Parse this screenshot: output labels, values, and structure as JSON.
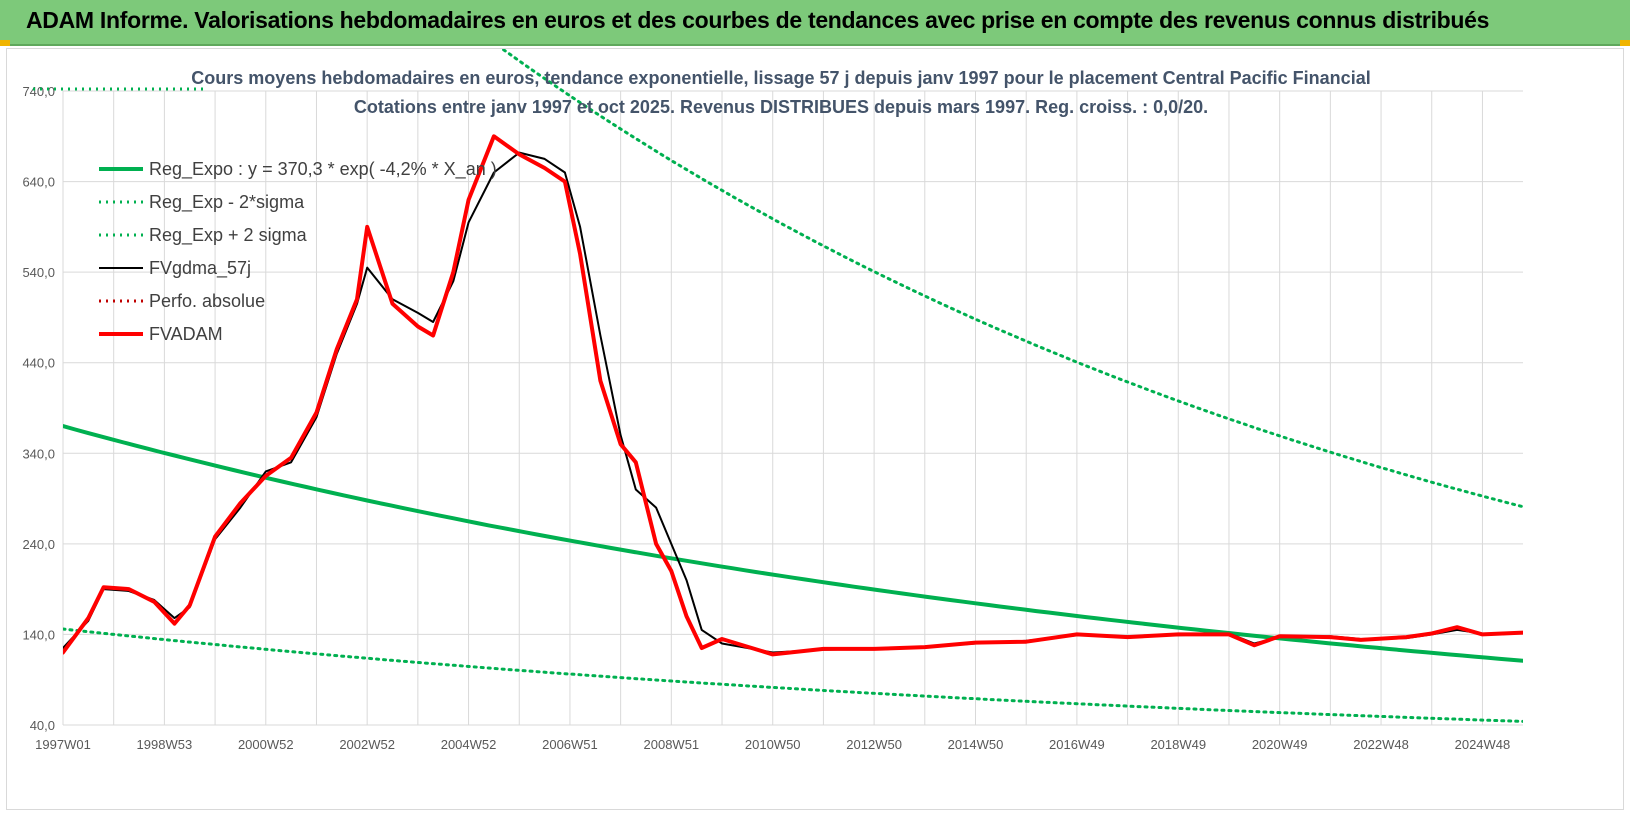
{
  "banner": {
    "title": "ADAM Informe. Valorisations hebdomadaires en euros et des courbes de tendances avec prise en compte des revenus connus distribués"
  },
  "colors": {
    "banner_bg": "#7dc97a",
    "trend": "#00b050",
    "fv57": "#000000",
    "fvadam": "#ff0000",
    "perfo": "#c00000",
    "grid": "#d9d9d9",
    "title_text": "#44546a"
  },
  "chart_data": {
    "type": "line",
    "title_line1": "Cours moyens hebdomadaires en euros, tendance exponentielle, lissage 57 j depuis janv 1997 pour le placement Central Pacific Financial",
    "title_line2": "Cotations entre janv 1997 et oct 2025. Revenus DISTRIBUES depuis mars 1997. Reg. croiss. : 0,0/20.",
    "x_range": [
      1997.0,
      2025.8
    ],
    "ylim": [
      40,
      740
    ],
    "y_ticks": [
      {
        "value": 40,
        "label": "40,0"
      },
      {
        "value": 140,
        "label": "140,0"
      },
      {
        "value": 240,
        "label": "240,0"
      },
      {
        "value": 340,
        "label": "340,0"
      },
      {
        "value": 440,
        "label": "440,0"
      },
      {
        "value": 540,
        "label": "540,0"
      },
      {
        "value": 640,
        "label": "640,0"
      },
      {
        "value": 740,
        "label": "740,0"
      }
    ],
    "x_ticks": [
      {
        "x": 1997.0,
        "label": "1997W01"
      },
      {
        "x": 1999.0,
        "label": "1998W53"
      },
      {
        "x": 2001.0,
        "label": "2000W52"
      },
      {
        "x": 2003.0,
        "label": "2002W52"
      },
      {
        "x": 2005.0,
        "label": "2004W52"
      },
      {
        "x": 2007.0,
        "label": "2006W51"
      },
      {
        "x": 2009.0,
        "label": "2008W51"
      },
      {
        "x": 2011.0,
        "label": "2010W50"
      },
      {
        "x": 2013.0,
        "label": "2012W50"
      },
      {
        "x": 2015.0,
        "label": "2014W50"
      },
      {
        "x": 2017.0,
        "label": "2016W49"
      },
      {
        "x": 2019.0,
        "label": "2018W49"
      },
      {
        "x": 2021.0,
        "label": "2020W49"
      },
      {
        "x": 2023.0,
        "label": "2022W48"
      },
      {
        "x": 2025.0,
        "label": "2024W48"
      }
    ],
    "grid": true,
    "legend_position": "top-left",
    "series": [
      {
        "name": "Reg_Expo : y = 370,3 * exp( -4,2% * X_an )",
        "style": "solid-thick",
        "color": "#00b050",
        "x": [
          1997.0,
          2025.8
        ],
        "y": [
          370,
          111
        ]
      },
      {
        "name": "Reg_Exp - 2*sigma",
        "style": "dotted",
        "color": "#00b050",
        "x": [
          1997.0,
          2025.8
        ],
        "y": [
          146,
          44
        ]
      },
      {
        "name": "Reg_Exp + 2 sigma",
        "style": "dotted",
        "color": "#00b050",
        "x": [
          1997.0,
          2025.8
        ],
        "y": [
          1225,
          281
        ]
      },
      {
        "name": "FVgdma_57j",
        "style": "solid",
        "color": "#000000",
        "x": [
          1997.0,
          1997.5,
          1997.8,
          1998.3,
          1998.8,
          1999.2,
          1999.5,
          2000.0,
          2000.5,
          2001.0,
          2001.5,
          2002.0,
          2002.4,
          2002.8,
          2003.0,
          2003.5,
          2004.0,
          2004.3,
          2004.7,
          2005.0,
          2005.5,
          2006.0,
          2006.5,
          2006.9,
          2007.2,
          2007.6,
          2008.0,
          2008.3,
          2008.7,
          2009.0,
          2009.3,
          2009.6,
          2010.0,
          2011.0,
          2012.0,
          2013.0,
          2014.0,
          2015.0,
          2016.0,
          2017.0,
          2018.0,
          2019.0,
          2020.0,
          2020.5,
          2021.0,
          2022.0,
          2022.6,
          2023.5,
          2024.0,
          2024.5,
          2025.0,
          2025.8
        ],
        "y": [
          125,
          155,
          190,
          188,
          178,
          158,
          170,
          245,
          280,
          320,
          330,
          380,
          450,
          505,
          545,
          510,
          495,
          485,
          530,
          595,
          650,
          672,
          665,
          650,
          590,
          470,
          360,
          300,
          280,
          240,
          200,
          145,
          130,
          120,
          123,
          124,
          126,
          130,
          133,
          139,
          138,
          139,
          141,
          130,
          137,
          138,
          135,
          136,
          140,
          145,
          141,
          141
        ]
      },
      {
        "name": "Perfo. absolue",
        "style": "dotted",
        "color": "#c00000",
        "x": [
          1997.0,
          1997.5,
          1997.8,
          1998.3,
          1998.8,
          1999.2,
          1999.5,
          2000.0,
          2000.5,
          2001.0,
          2001.5,
          2002.0,
          2002.4,
          2002.8,
          2003.0,
          2003.5,
          2004.0,
          2004.3,
          2004.7,
          2005.0,
          2005.5,
          2006.0,
          2006.5,
          2006.9,
          2007.2,
          2007.6,
          2008.0,
          2008.3,
          2008.7,
          2009.0,
          2009.3,
          2009.6,
          2010.0,
          2011.0,
          2012.0,
          2013.0,
          2014.0,
          2015.0,
          2016.0,
          2017.0,
          2018.0,
          2019.0,
          2020.0,
          2020.5,
          2021.0,
          2022.0,
          2022.6,
          2023.5,
          2024.0,
          2024.5,
          2025.0,
          2025.8
        ],
        "y": [
          120,
          158,
          192,
          190,
          176,
          152,
          172,
          248,
          285,
          315,
          335,
          385,
          455,
          510,
          590,
          505,
          480,
          470,
          540,
          620,
          690,
          670,
          655,
          640,
          560,
          420,
          350,
          330,
          240,
          210,
          160,
          125,
          135,
          118,
          124,
          124,
          126,
          131,
          132,
          140,
          137,
          140,
          140,
          128,
          138,
          137,
          134,
          137,
          141,
          148,
          140,
          142
        ]
      },
      {
        "name": "FVADAM",
        "style": "solid-thick",
        "color": "#ff0000",
        "x": [
          1997.0,
          1997.5,
          1997.8,
          1998.3,
          1998.8,
          1999.2,
          1999.5,
          2000.0,
          2000.5,
          2001.0,
          2001.5,
          2002.0,
          2002.4,
          2002.8,
          2003.0,
          2003.5,
          2004.0,
          2004.3,
          2004.7,
          2005.0,
          2005.5,
          2006.0,
          2006.5,
          2006.9,
          2007.2,
          2007.6,
          2008.0,
          2008.3,
          2008.7,
          2009.0,
          2009.3,
          2009.6,
          2010.0,
          2011.0,
          2012.0,
          2013.0,
          2014.0,
          2015.0,
          2016.0,
          2017.0,
          2018.0,
          2019.0,
          2020.0,
          2020.5,
          2021.0,
          2022.0,
          2022.6,
          2023.5,
          2024.0,
          2024.5,
          2025.0,
          2025.8
        ],
        "y": [
          120,
          158,
          192,
          190,
          176,
          152,
          172,
          248,
          285,
          315,
          335,
          385,
          455,
          510,
          590,
          505,
          480,
          470,
          540,
          620,
          690,
          670,
          655,
          640,
          560,
          420,
          350,
          330,
          240,
          210,
          160,
          125,
          135,
          118,
          124,
          124,
          126,
          131,
          132,
          140,
          137,
          140,
          140,
          128,
          138,
          137,
          134,
          137,
          141,
          148,
          140,
          142
        ]
      }
    ]
  }
}
